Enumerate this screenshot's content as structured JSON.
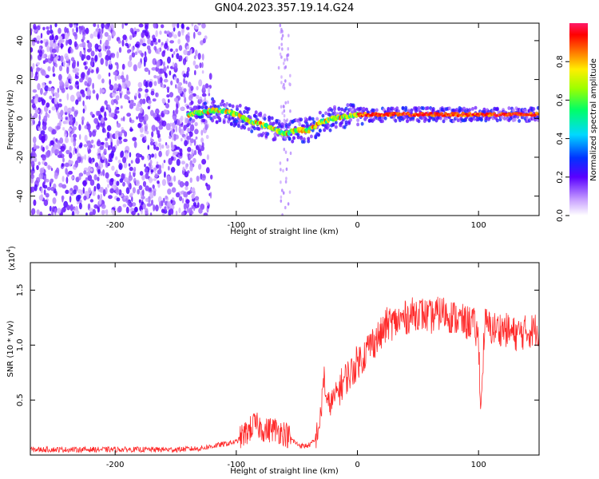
{
  "title": "GN04.2023.357.19.14.G24",
  "chart_data": [
    {
      "type": "heatmap",
      "xlabel": "Height of straight line (km)",
      "ylabel": "Frequency (Hz)",
      "xlim": [
        -270,
        150
      ],
      "ylim": [
        -50,
        49
      ],
      "xticks": [
        -200,
        -100,
        0,
        100
      ],
      "xtick_labels": [
        "-200",
        "-100",
        "0",
        "100"
      ],
      "yticks": [
        -40,
        -20,
        0,
        20,
        40
      ],
      "ytick_labels": [
        "-40",
        "-20",
        "0",
        "20",
        "40"
      ],
      "ridge": {
        "x": [
          -140,
          -130,
          -120,
          -110,
          -100,
          -90,
          -80,
          -70,
          -60,
          -50,
          -40,
          -30,
          -20,
          -10,
          0,
          10,
          20,
          40,
          60,
          80,
          100,
          120,
          150
        ],
        "y": [
          2,
          3,
          4,
          4,
          2,
          -1,
          -3,
          -5,
          -8,
          -6,
          -6,
          -2,
          0,
          1,
          2,
          2,
          2,
          2,
          2,
          2,
          2,
          2,
          2
        ]
      },
      "colorbar": {
        "label": "Normalized spectral amplitude",
        "range": [
          0,
          1
        ],
        "ticks": [
          0.0,
          0.2,
          0.4,
          0.6,
          0.8
        ],
        "tick_labels": [
          "0.0",
          "0.2",
          "0.4",
          "0.6",
          "0.8"
        ]
      }
    },
    {
      "type": "line",
      "xlabel": "Height of straight line (km)",
      "ylabel": "SNR (10 * v/v)",
      "multiplier_label": "(x10",
      "multiplier_exp": "4",
      "xlim": [
        -270,
        150
      ],
      "ylim": [
        0,
        1.75
      ],
      "xticks": [
        -200,
        -100,
        0,
        100
      ],
      "xtick_labels": [
        "-200",
        "-100",
        "0",
        "100"
      ],
      "yticks": [
        0.5,
        1.0,
        1.5
      ],
      "ytick_labels": [
        "0.5",
        "1.0",
        "1.5"
      ],
      "color": "#ff2a2a",
      "x": [
        -270,
        -240,
        -210,
        -180,
        -150,
        -130,
        -120,
        -110,
        -100,
        -90,
        -85,
        -80,
        -75,
        -70,
        -65,
        -60,
        -55,
        -50,
        -45,
        -40,
        -35,
        -30,
        -28,
        -25,
        -20,
        -15,
        -10,
        -5,
        0,
        5,
        10,
        15,
        20,
        25,
        30,
        40,
        50,
        60,
        70,
        80,
        90,
        95,
        100,
        102,
        105,
        110,
        120,
        130,
        140,
        150
      ],
      "y": [
        0.05,
        0.05,
        0.05,
        0.05,
        0.05,
        0.06,
        0.08,
        0.1,
        0.12,
        0.22,
        0.28,
        0.25,
        0.22,
        0.24,
        0.22,
        0.2,
        0.15,
        0.1,
        0.08,
        0.09,
        0.13,
        0.35,
        0.75,
        0.45,
        0.5,
        0.6,
        0.7,
        0.75,
        0.85,
        0.9,
        1.0,
        1.05,
        1.1,
        1.2,
        1.2,
        1.25,
        1.3,
        1.25,
        1.3,
        1.25,
        1.2,
        1.22,
        1.05,
        0.4,
        1.2,
        1.15,
        1.15,
        1.1,
        1.12,
        1.15
      ]
    }
  ]
}
